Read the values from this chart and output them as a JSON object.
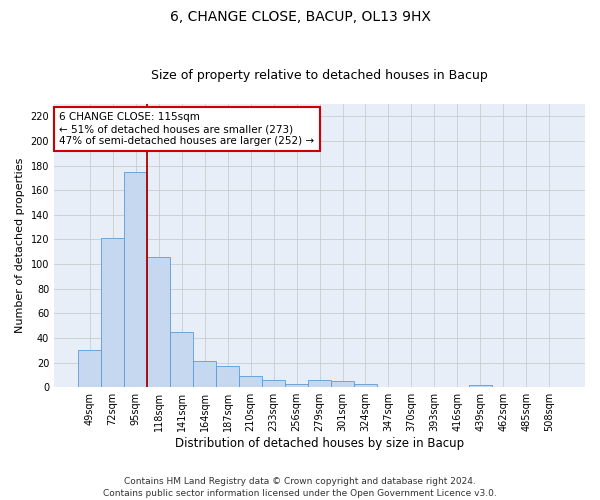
{
  "title": "6, CHANGE CLOSE, BACUP, OL13 9HX",
  "subtitle": "Size of property relative to detached houses in Bacup",
  "xlabel": "Distribution of detached houses by size in Bacup",
  "ylabel": "Number of detached properties",
  "categories": [
    "49sqm",
    "72sqm",
    "95sqm",
    "118sqm",
    "141sqm",
    "164sqm",
    "187sqm",
    "210sqm",
    "233sqm",
    "256sqm",
    "279sqm",
    "301sqm",
    "324sqm",
    "347sqm",
    "370sqm",
    "393sqm",
    "416sqm",
    "439sqm",
    "462sqm",
    "485sqm",
    "508sqm"
  ],
  "values": [
    30,
    121,
    175,
    106,
    45,
    21,
    17,
    9,
    6,
    3,
    6,
    5,
    3,
    0,
    0,
    0,
    0,
    2,
    0,
    0,
    0
  ],
  "bar_color": "#c5d8f0",
  "bar_edge_color": "#5b9bd5",
  "vline_pos": 2.5,
  "vline_color": "#aa0000",
  "annotation_text": "6 CHANGE CLOSE: 115sqm\n← 51% of detached houses are smaller (273)\n47% of semi-detached houses are larger (252) →",
  "annotation_box_color": "#ffffff",
  "annotation_box_edge_color": "#cc0000",
  "ylim": [
    0,
    230
  ],
  "yticks": [
    0,
    20,
    40,
    60,
    80,
    100,
    120,
    140,
    160,
    180,
    200,
    220
  ],
  "grid_color": "#cccccc",
  "bg_color": "#e8eef8",
  "fig_bg_color": "#ffffff",
  "footer_text": "Contains HM Land Registry data © Crown copyright and database right 2024.\nContains public sector information licensed under the Open Government Licence v3.0.",
  "title_fontsize": 10,
  "subtitle_fontsize": 9,
  "xlabel_fontsize": 8.5,
  "ylabel_fontsize": 8,
  "tick_fontsize": 7,
  "annotation_fontsize": 7.5,
  "footer_fontsize": 6.5
}
